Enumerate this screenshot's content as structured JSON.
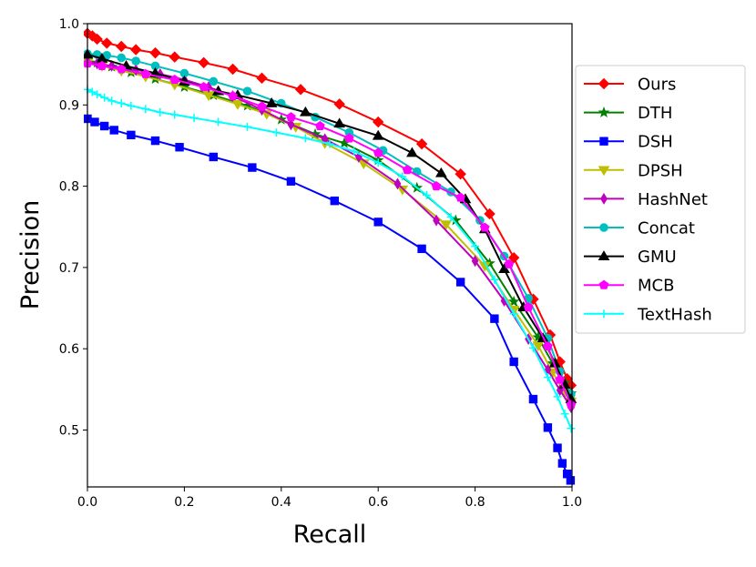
{
  "chart_data": {
    "type": "line",
    "title": "",
    "xlabel": "Recall",
    "ylabel": "Precision",
    "xlim": [
      0.0,
      1.0
    ],
    "ylim": [
      0.43,
      1.0
    ],
    "grid": false,
    "legend_position": "right-outside",
    "xticks": [
      0.0,
      0.2,
      0.4,
      0.6,
      0.8,
      1.0
    ],
    "xtick_labels": [
      "0.0",
      "0.2",
      "0.4",
      "0.6",
      "0.8",
      "1.0"
    ],
    "yticks": [
      0.5,
      0.6,
      0.7,
      0.8,
      0.9,
      1.0
    ],
    "ytick_labels": [
      "0.5",
      "0.6",
      "0.7",
      "0.8",
      "0.9",
      "1.0"
    ],
    "series": [
      {
        "name": "Ours",
        "color": "#ff0000",
        "marker": "diamond",
        "x": [
          0.0,
          0.01,
          0.02,
          0.04,
          0.07,
          0.1,
          0.14,
          0.18,
          0.24,
          0.3,
          0.36,
          0.44,
          0.52,
          0.6,
          0.69,
          0.77,
          0.83,
          0.88,
          0.92,
          0.955,
          0.975,
          0.99,
          0.998
        ],
        "y": [
          0.988,
          0.985,
          0.981,
          0.976,
          0.972,
          0.968,
          0.964,
          0.959,
          0.952,
          0.944,
          0.933,
          0.919,
          0.901,
          0.879,
          0.852,
          0.815,
          0.766,
          0.712,
          0.661,
          0.617,
          0.584,
          0.563,
          0.555
        ]
      },
      {
        "name": "DTH",
        "color": "#008000",
        "marker": "star",
        "x": [
          0.0,
          0.02,
          0.05,
          0.09,
          0.14,
          0.2,
          0.26,
          0.33,
          0.4,
          0.47,
          0.53,
          0.6,
          0.68,
          0.76,
          0.83,
          0.88,
          0.93,
          0.96,
          0.985,
          0.998
        ],
        "y": [
          0.955,
          0.952,
          0.947,
          0.94,
          0.932,
          0.922,
          0.912,
          0.899,
          0.882,
          0.864,
          0.853,
          0.832,
          0.798,
          0.758,
          0.705,
          0.658,
          0.614,
          0.582,
          0.558,
          0.545
        ]
      },
      {
        "name": "DSH",
        "color": "#0000ff",
        "marker": "square",
        "x": [
          0.0,
          0.015,
          0.035,
          0.055,
          0.09,
          0.14,
          0.19,
          0.26,
          0.34,
          0.42,
          0.51,
          0.6,
          0.69,
          0.77,
          0.84,
          0.88,
          0.92,
          0.95,
          0.97,
          0.98,
          0.99,
          0.997
        ],
        "y": [
          0.883,
          0.879,
          0.874,
          0.869,
          0.863,
          0.856,
          0.848,
          0.836,
          0.823,
          0.806,
          0.782,
          0.756,
          0.723,
          0.682,
          0.637,
          0.584,
          0.538,
          0.503,
          0.478,
          0.459,
          0.446,
          0.438
        ]
      },
      {
        "name": "DPSH",
        "color": "#bfbf00",
        "marker": "triangle-down",
        "x": [
          0.0,
          0.03,
          0.07,
          0.12,
          0.18,
          0.25,
          0.31,
          0.37,
          0.43,
          0.49,
          0.57,
          0.65,
          0.74,
          0.82,
          0.88,
          0.93,
          0.96,
          0.985,
          0.998
        ],
        "y": [
          0.952,
          0.948,
          0.942,
          0.935,
          0.925,
          0.912,
          0.901,
          0.889,
          0.873,
          0.853,
          0.828,
          0.796,
          0.753,
          0.702,
          0.648,
          0.604,
          0.571,
          0.546,
          0.535
        ]
      },
      {
        "name": "HashNet",
        "color": "#bf00bf",
        "marker": "thin-diamond",
        "x": [
          0.0,
          0.02,
          0.05,
          0.1,
          0.15,
          0.2,
          0.25,
          0.3,
          0.36,
          0.42,
          0.49,
          0.56,
          0.64,
          0.72,
          0.8,
          0.86,
          0.91,
          0.95,
          0.975,
          0.998
        ],
        "y": [
          0.953,
          0.951,
          0.948,
          0.943,
          0.938,
          0.931,
          0.922,
          0.911,
          0.894,
          0.876,
          0.858,
          0.836,
          0.803,
          0.758,
          0.708,
          0.659,
          0.612,
          0.574,
          0.549,
          0.528
        ]
      },
      {
        "name": "Concat",
        "color": "#00bfbf",
        "marker": "circle",
        "x": [
          0.0,
          0.02,
          0.04,
          0.07,
          0.1,
          0.14,
          0.2,
          0.26,
          0.33,
          0.4,
          0.47,
          0.54,
          0.61,
          0.68,
          0.75,
          0.81,
          0.86,
          0.91,
          0.95,
          0.975,
          0.998
        ],
        "y": [
          0.963,
          0.962,
          0.961,
          0.958,
          0.954,
          0.948,
          0.939,
          0.929,
          0.917,
          0.902,
          0.885,
          0.866,
          0.844,
          0.818,
          0.793,
          0.758,
          0.714,
          0.662,
          0.613,
          0.572,
          0.544
        ]
      },
      {
        "name": "GMU",
        "color": "#000000",
        "marker": "triangle-up",
        "x": [
          0.0,
          0.03,
          0.08,
          0.14,
          0.2,
          0.27,
          0.31,
          0.38,
          0.45,
          0.52,
          0.6,
          0.67,
          0.73,
          0.78,
          0.82,
          0.86,
          0.9,
          0.94,
          0.965,
          0.985,
          0.998
        ],
        "y": [
          0.962,
          0.957,
          0.948,
          0.939,
          0.929,
          0.917,
          0.912,
          0.902,
          0.891,
          0.877,
          0.862,
          0.841,
          0.816,
          0.784,
          0.747,
          0.698,
          0.651,
          0.613,
          0.582,
          0.556,
          0.538
        ]
      },
      {
        "name": "MCB",
        "color": "#ff00ff",
        "marker": "pentagon",
        "x": [
          0.0,
          0.03,
          0.07,
          0.12,
          0.18,
          0.24,
          0.3,
          0.36,
          0.42,
          0.48,
          0.54,
          0.6,
          0.66,
          0.72,
          0.77,
          0.82,
          0.87,
          0.91,
          0.95,
          0.975,
          0.998
        ],
        "y": [
          0.951,
          0.948,
          0.944,
          0.938,
          0.931,
          0.922,
          0.911,
          0.898,
          0.885,
          0.874,
          0.859,
          0.841,
          0.82,
          0.8,
          0.786,
          0.749,
          0.704,
          0.651,
          0.603,
          0.562,
          0.531
        ]
      },
      {
        "name": "TextHash",
        "color": "#00ffff",
        "marker": "plus",
        "x": [
          0.0,
          0.01,
          0.02,
          0.035,
          0.05,
          0.07,
          0.09,
          0.12,
          0.15,
          0.18,
          0.22,
          0.27,
          0.33,
          0.39,
          0.45,
          0.5,
          0.55,
          0.6,
          0.65,
          0.7,
          0.75,
          0.8,
          0.84,
          0.88,
          0.92,
          0.95,
          0.97,
          0.985,
          0.998
        ],
        "y": [
          0.919,
          0.916,
          0.913,
          0.909,
          0.905,
          0.902,
          0.899,
          0.895,
          0.891,
          0.888,
          0.884,
          0.879,
          0.873,
          0.866,
          0.859,
          0.852,
          0.843,
          0.829,
          0.812,
          0.789,
          0.762,
          0.726,
          0.685,
          0.643,
          0.601,
          0.565,
          0.541,
          0.52,
          0.502
        ]
      }
    ]
  }
}
